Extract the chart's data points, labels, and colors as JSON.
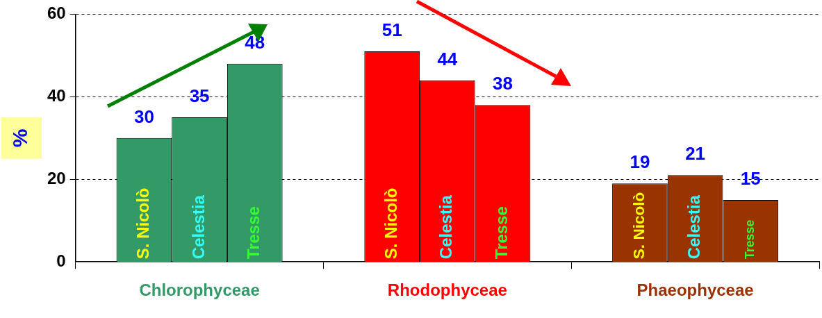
{
  "chart_data": {
    "type": "bar",
    "ylabel": "%",
    "categories": [
      "Chlorophyceae",
      "Rhodophyceae",
      "Phaeophyceae"
    ],
    "series": [
      {
        "name": "S. Nicolò",
        "colors": [
          "#339966",
          "#ff0000",
          "#993300"
        ],
        "values": [
          30,
          51,
          19
        ]
      },
      {
        "name": "Celestia",
        "colors": [
          "#339966",
          "#ff0000",
          "#993300"
        ],
        "values": [
          35,
          44,
          21
        ]
      },
      {
        "name": "Tresse",
        "colors": [
          "#339966",
          "#ff0000",
          "#993300"
        ],
        "values": [
          48,
          38,
          15
        ]
      }
    ],
    "ylim": [
      0,
      60
    ],
    "yticks": [
      0,
      20,
      40,
      60
    ],
    "grid": "y",
    "legend": false,
    "data_labels": true
  }
}
